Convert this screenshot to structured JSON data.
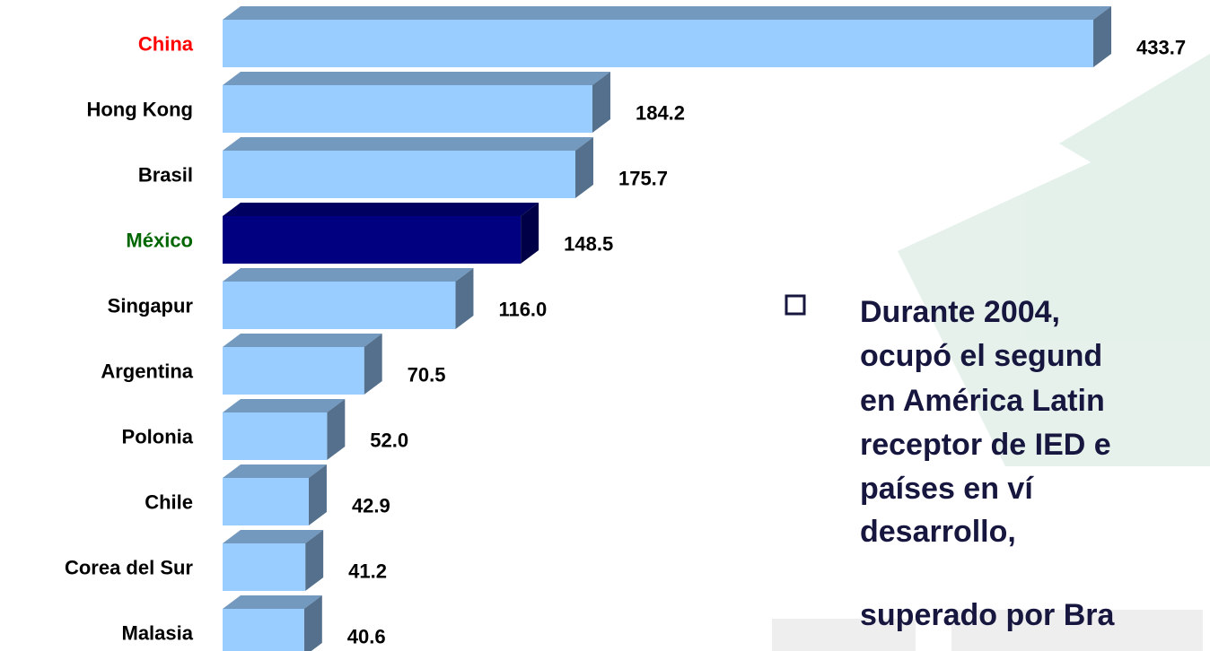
{
  "chart_data": {
    "type": "bar3d",
    "categories": [
      "China",
      "Hong Kong",
      "Brasil",
      "México",
      "Singapur",
      "Argentina",
      "Polonia",
      "Chile",
      "Corea del Sur",
      "Malasia"
    ],
    "values": [
      433.7,
      184.2,
      175.7,
      148.5,
      116.0,
      70.5,
      52.0,
      42.9,
      41.2,
      40.6
    ],
    "value_labels": [
      "433.7",
      "184.2",
      "175.7",
      "148.5",
      "116.0",
      "70.5",
      "52.0",
      "42.9",
      "41.2",
      "40.6"
    ],
    "colors": [
      "#99ccff",
      "#99ccff",
      "#99ccff",
      "#000080",
      "#99ccff",
      "#99ccff",
      "#99ccff",
      "#99ccff",
      "#99ccff",
      "#99ccff"
    ],
    "label_colors": [
      "#ff0000",
      "#000000",
      "#000000",
      "#006600",
      "#000000",
      "#000000",
      "#000000",
      "#000000",
      "#000000",
      "#000000"
    ],
    "annotation_lines": [
      "Durante 2004,",
      "ocupó el segund",
      "en América Latin",
      "receptor de IED e",
      "países en ví",
      "desarrollo,",
      "superado por Bra"
    ]
  }
}
